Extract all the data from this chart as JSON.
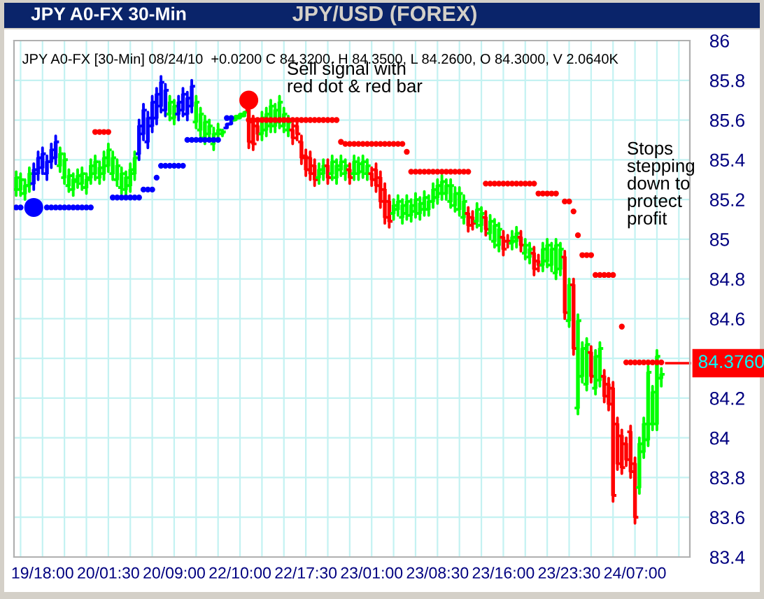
{
  "chart_data": {
    "type": "candlestick",
    "title": "JPY/USD (FOREX)",
    "subtitle": "JPY A0-FX [30-Min] 08/24/10  +0.0200 C 84.3200, H 84.3500, L 84.2600, O 84.3000, V 2.0640K",
    "annotations": [
      "JPY A0-FX 30-Min",
      "Sell signal with\nred dot & red bar",
      "Stops\nstepping\ndown to\nprotect\nprofit"
    ],
    "categories": [
      null,
      null,
      null,
      null,
      null,
      null,
      "19/18:00",
      null,
      null,
      null,
      null,
      null,
      null,
      null,
      null,
      null,
      null,
      null,
      null,
      null,
      null,
      "20/01:30",
      null,
      null,
      null,
      null,
      null,
      null,
      null,
      null,
      null,
      null,
      null,
      null,
      null,
      null,
      "20/09:00",
      null,
      null,
      null,
      null,
      null,
      null,
      null,
      null,
      null,
      null,
      null,
      null,
      null,
      null,
      "22/10:00",
      null,
      null,
      null,
      null,
      null,
      null,
      null,
      null,
      null,
      null,
      null,
      null,
      null,
      null,
      "22/17:30",
      null,
      null,
      null,
      null,
      null,
      null,
      null,
      null,
      null,
      null,
      null,
      null,
      null,
      null,
      "23/01:00",
      null,
      null,
      null,
      null,
      null,
      null,
      null,
      null,
      null,
      null,
      null,
      null,
      null,
      null,
      "23/08:30",
      null,
      null,
      null,
      null,
      null,
      null,
      null,
      null,
      null,
      null,
      null,
      null,
      null,
      null,
      "23/16:00",
      null,
      null,
      null,
      null,
      null,
      null,
      null,
      null,
      null,
      null,
      null,
      null,
      null,
      null,
      "23/23:30",
      null,
      null,
      null,
      null,
      null,
      null,
      null,
      null,
      null,
      null,
      null,
      null,
      null,
      null,
      "24/07:00",
      null,
      null,
      null,
      null,
      null,
      null,
      null,
      null,
      null,
      null,
      null,
      null
    ],
    "ohlc": [
      [
        85.25,
        85.34,
        85.22,
        85.31
      ],
      [
        85.25,
        85.33,
        85.22,
        85.3
      ],
      [
        85.23,
        85.3,
        85.2,
        85.27
      ],
      [
        85.27,
        85.36,
        85.24,
        85.33
      ],
      [
        85.28,
        85.38,
        85.25,
        85.35
      ],
      [
        85.33,
        85.44,
        85.3,
        85.41
      ],
      [
        85.36,
        85.46,
        85.33,
        85.43
      ],
      [
        85.33,
        85.42,
        85.3,
        85.39
      ],
      [
        85.39,
        85.48,
        85.36,
        85.45
      ],
      [
        85.41,
        85.52,
        85.38,
        85.49
      ],
      [
        85.37,
        85.46,
        85.34,
        85.43
      ],
      [
        85.31,
        85.43,
        85.28,
        85.4
      ],
      [
        85.27,
        85.35,
        85.24,
        85.32
      ],
      [
        85.25,
        85.33,
        85.22,
        85.3
      ],
      [
        85.29,
        85.35,
        85.26,
        85.32
      ],
      [
        85.28,
        85.36,
        85.25,
        85.33
      ],
      [
        85.26,
        85.33,
        85.23,
        85.3
      ],
      [
        85.31,
        85.4,
        85.28,
        85.37
      ],
      [
        85.33,
        85.42,
        85.3,
        85.39
      ],
      [
        85.31,
        85.39,
        85.28,
        85.36
      ],
      [
        85.33,
        85.44,
        85.3,
        85.41
      ],
      [
        85.37,
        85.48,
        85.34,
        85.45
      ],
      [
        85.33,
        85.44,
        85.3,
        85.41
      ],
      [
        85.3,
        85.4,
        85.27,
        85.37
      ],
      [
        85.26,
        85.36,
        85.23,
        85.33
      ],
      [
        85.25,
        85.34,
        85.22,
        85.31
      ],
      [
        85.27,
        85.38,
        85.24,
        85.35
      ],
      [
        85.33,
        85.44,
        85.3,
        85.41
      ],
      [
        85.43,
        85.6,
        85.4,
        85.57
      ],
      [
        85.53,
        85.68,
        85.5,
        85.65
      ],
      [
        85.49,
        85.64,
        85.46,
        85.61
      ],
      [
        85.57,
        85.72,
        85.54,
        85.69
      ],
      [
        85.61,
        85.76,
        85.58,
        85.73
      ],
      [
        85.67,
        85.82,
        85.64,
        85.79
      ],
      [
        85.65,
        85.78,
        85.62,
        85.75
      ],
      [
        85.63,
        85.72,
        85.6,
        85.69
      ],
      [
        85.61,
        85.7,
        85.58,
        85.67
      ],
      [
        85.63,
        85.72,
        85.6,
        85.69
      ],
      [
        85.65,
        85.76,
        85.62,
        85.73
      ],
      [
        85.63,
        85.74,
        85.6,
        85.71
      ],
      [
        85.67,
        85.8,
        85.64,
        85.77
      ],
      [
        85.59,
        85.72,
        85.56,
        85.69
      ],
      [
        85.55,
        85.66,
        85.52,
        85.63
      ],
      [
        85.51,
        85.62,
        85.48,
        85.59
      ],
      [
        85.53,
        85.6,
        85.5,
        85.57
      ],
      [
        85.48,
        85.56,
        85.45,
        85.53
      ],
      [
        85.53,
        85.58,
        85.5,
        85.55
      ],
      [
        85.53,
        85.55,
        85.52,
        85.54
      ],
      [
        85.56,
        85.58,
        85.56,
        85.58
      ],
      [
        85.58,
        85.6,
        85.58,
        85.6
      ],
      [
        85.6,
        85.62,
        85.6,
        85.62
      ],
      [
        85.61,
        85.63,
        85.61,
        85.63
      ],
      [
        85.62,
        85.64,
        85.62,
        85.64
      ],
      [
        85.65,
        85.68,
        85.46,
        85.49
      ],
      [
        85.59,
        85.62,
        85.45,
        85.48
      ],
      [
        85.57,
        85.6,
        85.5,
        85.53
      ],
      [
        85.53,
        85.64,
        85.5,
        85.61
      ],
      [
        85.55,
        85.66,
        85.52,
        85.63
      ],
      [
        85.57,
        85.7,
        85.54,
        85.67
      ],
      [
        85.57,
        85.68,
        85.54,
        85.65
      ],
      [
        85.59,
        85.72,
        85.56,
        85.69
      ],
      [
        85.57,
        85.66,
        85.54,
        85.63
      ],
      [
        85.55,
        85.62,
        85.52,
        85.59
      ],
      [
        85.55,
        85.58,
        85.48,
        85.51
      ],
      [
        85.57,
        85.6,
        85.5,
        85.53
      ],
      [
        85.49,
        85.52,
        85.38,
        85.41
      ],
      [
        85.42,
        85.45,
        85.32,
        85.35
      ],
      [
        85.41,
        85.44,
        85.3,
        85.33
      ],
      [
        85.37,
        85.4,
        85.27,
        85.3
      ],
      [
        85.31,
        85.38,
        85.28,
        85.35
      ],
      [
        85.33,
        85.4,
        85.3,
        85.37
      ],
      [
        85.37,
        85.4,
        85.28,
        85.31
      ],
      [
        85.33,
        85.42,
        85.3,
        85.39
      ],
      [
        85.31,
        85.4,
        85.28,
        85.37
      ],
      [
        85.35,
        85.42,
        85.32,
        85.39
      ],
      [
        85.33,
        85.4,
        85.3,
        85.37
      ],
      [
        85.35,
        85.38,
        85.28,
        85.31
      ],
      [
        85.33,
        85.42,
        85.3,
        85.39
      ],
      [
        85.33,
        85.41,
        85.3,
        85.38
      ],
      [
        85.34,
        85.42,
        85.31,
        85.39
      ],
      [
        85.33,
        85.4,
        85.3,
        85.37
      ],
      [
        85.33,
        85.36,
        85.27,
        85.3
      ],
      [
        85.35,
        85.38,
        85.24,
        85.27
      ],
      [
        85.31,
        85.34,
        85.16,
        85.19
      ],
      [
        85.25,
        85.28,
        85.08,
        85.11
      ],
      [
        85.19,
        85.22,
        85.06,
        85.09
      ],
      [
        85.13,
        85.2,
        85.1,
        85.17
      ],
      [
        85.15,
        85.22,
        85.12,
        85.19
      ],
      [
        85.11,
        85.2,
        85.08,
        85.17
      ],
      [
        85.13,
        85.22,
        85.1,
        85.19
      ],
      [
        85.12,
        85.2,
        85.09,
        85.17
      ],
      [
        85.14,
        85.23,
        85.11,
        85.2
      ],
      [
        85.13,
        85.21,
        85.1,
        85.18
      ],
      [
        85.15,
        85.24,
        85.12,
        85.21
      ],
      [
        85.15,
        85.22,
        85.12,
        85.19
      ],
      [
        85.19,
        85.28,
        85.16,
        85.25
      ],
      [
        85.21,
        85.3,
        85.18,
        85.27
      ],
      [
        85.23,
        85.32,
        85.2,
        85.29
      ],
      [
        85.23,
        85.3,
        85.2,
        85.27
      ],
      [
        85.19,
        85.3,
        85.16,
        85.27
      ],
      [
        85.17,
        85.26,
        85.14,
        85.23
      ],
      [
        85.15,
        85.26,
        85.12,
        85.23
      ],
      [
        85.11,
        85.22,
        85.08,
        85.19
      ],
      [
        85.13,
        85.16,
        85.04,
        85.07
      ],
      [
        85.11,
        85.14,
        85.05,
        85.08
      ],
      [
        85.09,
        85.18,
        85.06,
        85.15
      ],
      [
        85.07,
        85.16,
        85.04,
        85.13
      ],
      [
        85.11,
        85.14,
        85.02,
        85.05
      ],
      [
        85.03,
        85.12,
        85.0,
        85.09
      ],
      [
        84.99,
        85.1,
        84.96,
        85.07
      ],
      [
        84.97,
        85.08,
        84.94,
        85.05
      ],
      [
        85.01,
        85.04,
        84.92,
        84.95
      ],
      [
        84.99,
        85.02,
        84.96,
        84.99
      ],
      [
        84.98,
        85.04,
        84.95,
        85.01
      ],
      [
        84.99,
        85.06,
        84.96,
        85.03
      ],
      [
        85.01,
        85.04,
        84.94,
        84.97
      ],
      [
        84.93,
        85.0,
        84.9,
        84.97
      ],
      [
        84.91,
        84.98,
        84.88,
        84.95
      ],
      [
        84.93,
        84.96,
        84.82,
        84.85
      ],
      [
        84.89,
        84.92,
        84.84,
        84.87
      ],
      [
        84.87,
        84.98,
        84.84,
        84.95
      ],
      [
        84.89,
        85.0,
        84.86,
        84.97
      ],
      [
        84.87,
        84.98,
        84.84,
        84.95
      ],
      [
        84.83,
        85.0,
        84.8,
        84.97
      ],
      [
        84.85,
        84.98,
        84.82,
        84.95
      ],
      [
        84.91,
        84.94,
        84.6,
        84.63
      ],
      [
        84.59,
        84.8,
        84.56,
        84.77
      ],
      [
        84.77,
        84.8,
        84.42,
        84.45
      ],
      [
        84.15,
        84.62,
        84.12,
        84.59
      ],
      [
        84.31,
        84.48,
        84.28,
        84.45
      ],
      [
        84.27,
        84.5,
        84.24,
        84.47
      ],
      [
        84.43,
        84.46,
        84.28,
        84.31
      ],
      [
        84.25,
        84.44,
        84.22,
        84.41
      ],
      [
        84.29,
        84.48,
        84.26,
        84.45
      ],
      [
        84.31,
        84.34,
        84.18,
        84.21
      ],
      [
        84.27,
        84.3,
        84.14,
        84.17
      ],
      [
        84.25,
        84.28,
        83.68,
        83.71
      ],
      [
        84.07,
        84.1,
        83.84,
        83.87
      ],
      [
        84.01,
        84.04,
        83.82,
        83.85
      ],
      [
        83.97,
        84.0,
        83.86,
        83.89
      ],
      [
        84.03,
        84.06,
        83.8,
        83.83
      ],
      [
        83.87,
        83.9,
        83.57,
        83.6
      ],
      [
        83.75,
        84.0,
        83.72,
        83.97
      ],
      [
        83.93,
        84.1,
        83.9,
        84.07
      ],
      [
        83.99,
        84.36,
        83.96,
        84.33
      ],
      [
        84.07,
        84.26,
        84.04,
        84.23
      ],
      [
        84.07,
        84.44,
        84.04,
        84.41
      ],
      [
        84.3,
        84.35,
        84.26,
        84.32
      ],
      null,
      null,
      null,
      null,
      null,
      null
    ],
    "colors": [
      "#00ff00",
      "#00ff00",
      "#00ff00",
      "#00ff00",
      "#0000ff",
      "#0000ff",
      "#0000ff",
      "#0000ff",
      "#0000ff",
      "#0000ff",
      "#00ff00",
      "#00ff00",
      "#00ff00",
      "#00ff00",
      "#00ff00",
      "#00ff00",
      "#00ff00",
      "#00ff00",
      "#00ff00",
      "#00ff00",
      "#00ff00",
      "#00ff00",
      "#00ff00",
      "#00ff00",
      "#00ff00",
      "#00ff00",
      "#00ff00",
      "#00ff00",
      "#0000ff",
      "#0000ff",
      "#0000ff",
      "#0000ff",
      "#0000ff",
      "#0000ff",
      "#0000ff",
      "#00ff00",
      "#00ff00",
      "#0000ff",
      "#0000ff",
      "#0000ff",
      "#0000ff",
      "#00ff00",
      "#00ff00",
      "#00ff00",
      "#00ff00",
      "#00ff00",
      "#00ff00",
      "#00ff00",
      "#0000ff",
      "#0000ff",
      "#00ff00",
      "#00ff00",
      "#00ff00",
      "#ff0000",
      "#ff0000",
      "#ff0000",
      "#00ff00",
      "#00ff00",
      "#00ff00",
      "#00ff00",
      "#00ff00",
      "#00ff00",
      "#00ff00",
      "#ff0000",
      "#ff0000",
      "#ff0000",
      "#ff0000",
      "#ff0000",
      "#ff0000",
      "#00ff00",
      "#00ff00",
      "#ff0000",
      "#00ff00",
      "#00ff00",
      "#00ff00",
      "#00ff00",
      "#ff0000",
      "#00ff00",
      "#00ff00",
      "#00ff00",
      "#00ff00",
      "#ff0000",
      "#ff0000",
      "#ff0000",
      "#ff0000",
      "#ff0000",
      "#00ff00",
      "#00ff00",
      "#00ff00",
      "#00ff00",
      "#00ff00",
      "#00ff00",
      "#00ff00",
      "#00ff00",
      "#00ff00",
      "#00ff00",
      "#00ff00",
      "#00ff00",
      "#00ff00",
      "#00ff00",
      "#00ff00",
      "#00ff00",
      "#00ff00",
      "#ff0000",
      "#ff0000",
      "#00ff00",
      "#00ff00",
      "#ff0000",
      "#00ff00",
      "#00ff00",
      "#00ff00",
      "#ff0000",
      "#ff0000",
      "#00ff00",
      "#00ff00",
      "#ff0000",
      "#00ff00",
      "#00ff00",
      "#ff0000",
      "#ff0000",
      "#00ff00",
      "#00ff00",
      "#00ff00",
      "#00ff00",
      "#00ff00",
      "#ff0000",
      "#00ff00",
      "#ff0000",
      "#00ff00",
      "#00ff00",
      "#00ff00",
      "#ff0000",
      "#00ff00",
      "#00ff00",
      "#ff0000",
      "#ff0000",
      "#ff0000",
      "#ff0000",
      "#ff0000",
      "#ff0000",
      "#ff0000",
      "#ff0000",
      "#00ff00",
      "#00ff00",
      "#00ff00",
      "#00ff00",
      "#00ff00",
      "#00ff00",
      null,
      null,
      null,
      null,
      null,
      null
    ],
    "series": [
      {
        "type": "scatter",
        "marker": "circle",
        "color": "#0000ff",
        "values": [
          85.16,
          85.16,
          null,
          null,
          null,
          null,
          null,
          85.16,
          85.16,
          85.16,
          85.16,
          85.16,
          85.16,
          85.16,
          85.16,
          85.16,
          85.16,
          85.16,
          null,
          null,
          null,
          null,
          85.21,
          85.21,
          85.21,
          85.21,
          85.21,
          85.21,
          85.21,
          85.25,
          85.25,
          85.25,
          85.31,
          85.37,
          85.37,
          85.37,
          85.37,
          85.37,
          85.37,
          85.5,
          85.5,
          85.5,
          85.5,
          85.5,
          85.5,
          85.5,
          85.5,
          null,
          85.61,
          85.61,
          null,
          null,
          null,
          null,
          null,
          null,
          null,
          null,
          null,
          null,
          null,
          null,
          null,
          null,
          null,
          null,
          null,
          null,
          null,
          null,
          null,
          null,
          null,
          null,
          null,
          null,
          null,
          null,
          null,
          null,
          null,
          null,
          null,
          null,
          null,
          null,
          null,
          null,
          null,
          null,
          null,
          null,
          null,
          null,
          null,
          null,
          null,
          null,
          null,
          null,
          null,
          null,
          null,
          null,
          null,
          null,
          null,
          null,
          null,
          null,
          null,
          null,
          null,
          null,
          null,
          null,
          null,
          null,
          null,
          null,
          null,
          null,
          null,
          null,
          null,
          null,
          null,
          null,
          null,
          null,
          null,
          null,
          null,
          null,
          null,
          null,
          null,
          null,
          null,
          null,
          null,
          null,
          null,
          null,
          null,
          null,
          null,
          null,
          null,
          null,
          null,
          null,
          null,
          null
        ]
      },
      {
        "type": "scatter",
        "marker": "circle",
        "color": "#ff0000",
        "values": [
          null,
          null,
          null,
          null,
          null,
          null,
          null,
          null,
          null,
          null,
          null,
          null,
          null,
          null,
          null,
          null,
          null,
          null,
          85.54,
          85.54,
          85.54,
          85.54,
          null,
          null,
          null,
          null,
          null,
          null,
          null,
          null,
          null,
          null,
          null,
          null,
          null,
          null,
          null,
          null,
          null,
          null,
          null,
          null,
          null,
          null,
          null,
          null,
          null,
          null,
          null,
          null,
          null,
          null,
          null,
          85.6,
          85.6,
          85.6,
          85.6,
          85.6,
          85.6,
          85.6,
          85.6,
          85.6,
          85.6,
          85.6,
          85.6,
          85.6,
          85.6,
          85.6,
          85.6,
          85.6,
          85.6,
          85.6,
          85.6,
          85.6,
          85.49,
          85.48,
          85.48,
          85.48,
          85.48,
          85.48,
          85.48,
          85.48,
          85.48,
          85.48,
          85.48,
          85.48,
          85.48,
          85.48,
          85.48,
          85.44,
          85.34,
          85.34,
          85.34,
          85.34,
          85.34,
          85.34,
          85.34,
          85.34,
          85.34,
          85.34,
          85.34,
          85.34,
          85.34,
          85.34,
          null,
          null,
          null,
          85.28,
          85.28,
          85.28,
          85.28,
          85.28,
          85.28,
          85.28,
          85.28,
          85.28,
          85.28,
          85.28,
          85.28,
          85.23,
          85.23,
          85.23,
          85.23,
          85.23,
          null,
          85.19,
          85.19,
          85.14,
          85.02,
          84.92,
          84.92,
          84.92,
          84.82,
          84.82,
          84.82,
          84.82,
          84.82,
          null,
          84.56,
          84.38,
          84.38,
          84.38,
          84.38,
          84.38,
          84.38,
          84.38,
          84.38,
          84.38,
          null,
          null,
          null,
          null,
          null,
          null
        ]
      },
      {
        "type": "scatter",
        "marker": "circle",
        "color": "#0000ff",
        "values": [
          null,
          null,
          null,
          null,
          85.16,
          null,
          null,
          null,
          null,
          null,
          null,
          null,
          null,
          null,
          null,
          null,
          null,
          null,
          null,
          null,
          null,
          null,
          null,
          null,
          null,
          null,
          null,
          null,
          null,
          null,
          null,
          null,
          null,
          null,
          null,
          null,
          null,
          null,
          null,
          null,
          null,
          null,
          null,
          null,
          null,
          null,
          null,
          null,
          null,
          null,
          null,
          null,
          null,
          null,
          null,
          null,
          null,
          null,
          null,
          null,
          null,
          null,
          null,
          null,
          null,
          null,
          null,
          null,
          null,
          null,
          null,
          null,
          null,
          null,
          null,
          null,
          null,
          null,
          null,
          null,
          null,
          null,
          null,
          null,
          null,
          null,
          null,
          null,
          null,
          null,
          null,
          null,
          null,
          null,
          null,
          null,
          null,
          null,
          null,
          null,
          null,
          null,
          null,
          null,
          null,
          null,
          null,
          null,
          null,
          null,
          null,
          null,
          null,
          null,
          null,
          null,
          null,
          null,
          null,
          null,
          null,
          null,
          null,
          null,
          null,
          null,
          null,
          null,
          null,
          null,
          null,
          null,
          null,
          null,
          null,
          null,
          null,
          null,
          null,
          null,
          null,
          null,
          null,
          null,
          null,
          null,
          null,
          null,
          null,
          null,
          null,
          null,
          null,
          null
        ]
      },
      {
        "type": "scatter",
        "marker": "circle",
        "color": "#ff0000",
        "values": [
          null,
          null,
          null,
          null,
          null,
          null,
          null,
          null,
          null,
          null,
          null,
          null,
          null,
          null,
          null,
          null,
          null,
          null,
          null,
          null,
          null,
          null,
          null,
          null,
          null,
          null,
          null,
          null,
          null,
          null,
          null,
          null,
          null,
          null,
          null,
          null,
          null,
          null,
          null,
          null,
          null,
          null,
          null,
          null,
          null,
          null,
          null,
          null,
          null,
          null,
          null,
          null,
          null,
          85.7,
          null,
          null,
          null,
          null,
          null,
          null,
          null,
          null,
          null,
          null,
          null,
          null,
          null,
          null,
          null,
          null,
          null,
          null,
          null,
          null,
          null,
          null,
          null,
          null,
          null,
          null,
          null,
          null,
          null,
          null,
          null,
          null,
          null,
          null,
          null,
          null,
          null,
          null,
          null,
          null,
          null,
          null,
          null,
          null,
          null,
          null,
          null,
          null,
          null,
          null,
          null,
          null,
          null,
          null,
          null,
          null,
          null,
          null,
          null,
          null,
          null,
          null,
          null,
          null,
          null,
          null,
          null,
          null,
          null,
          null,
          null,
          null,
          null,
          null,
          null,
          null,
          null,
          null,
          null,
          null,
          null,
          null,
          null,
          null,
          null,
          null,
          null,
          null,
          null,
          null,
          null,
          null,
          null,
          null,
          null,
          null,
          null,
          null,
          null,
          null
        ]
      }
    ],
    "ylim": [
      83.4,
      86
    ],
    "yticks": [
      86,
      85.8,
      85.6,
      85.4,
      85.2,
      85,
      84.8,
      84.6,
      {
        "value": 84.4,
        "label": null
      },
      84.2,
      84,
      83.8,
      83.6,
      83.4
    ],
    "grid": true,
    "ref_lines": [
      {
        "axis": "y",
        "value": 84.376,
        "label": "84.3760",
        "color": "#ff0000"
      }
    ]
  }
}
